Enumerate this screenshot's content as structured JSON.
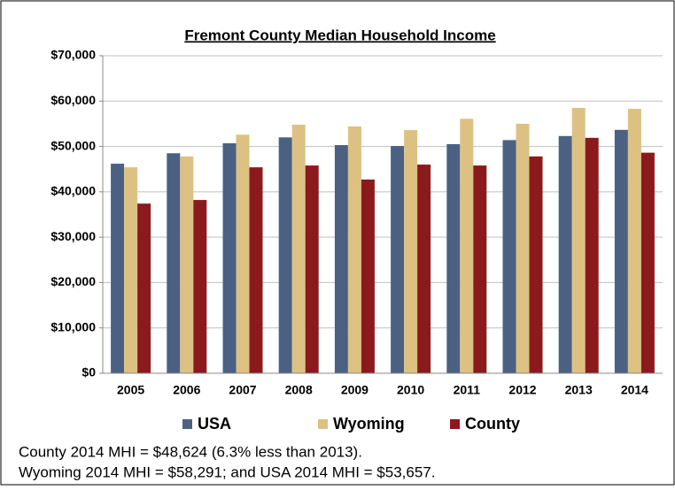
{
  "chart_data": {
    "type": "bar",
    "title": "Fremont County Median Household Income",
    "categories": [
      "2005",
      "2006",
      "2007",
      "2008",
      "2009",
      "2010",
      "2011",
      "2012",
      "2013",
      "2014"
    ],
    "series": [
      {
        "name": "USA",
        "color": "#4b6184",
        "values": [
          46200,
          48500,
          50700,
          52000,
          50300,
          50100,
          50500,
          51400,
          52300,
          53657
        ]
      },
      {
        "name": "Wyoming",
        "color": "#dcc183",
        "values": [
          45400,
          47800,
          52600,
          54800,
          54400,
          53600,
          56100,
          55000,
          58500,
          58291
        ]
      },
      {
        "name": "County",
        "color": "#8b1a1c",
        "values": [
          37400,
          38200,
          45400,
          45800,
          42700,
          46000,
          45800,
          47800,
          51900,
          48624
        ]
      }
    ],
    "ylim": [
      0,
      70000
    ],
    "yticks": [
      {
        "value": 0,
        "label": "$0"
      },
      {
        "value": 10000,
        "label": "$10,000"
      },
      {
        "value": 20000,
        "label": "$20,000"
      },
      {
        "value": 30000,
        "label": "$30,000"
      },
      {
        "value": 40000,
        "label": "$40,000"
      },
      {
        "value": 50000,
        "label": "$50,000"
      },
      {
        "value": 60000,
        "label": "$60,000"
      },
      {
        "value": 70000,
        "label": "$70,000"
      }
    ],
    "grid": true,
    "notes": [
      "County 2014 MHI = $48,624 (6.3% less than 2013).",
      "Wyoming 2014 MHI = $58,291; and USA 2014 MHI = $53,657."
    ]
  }
}
